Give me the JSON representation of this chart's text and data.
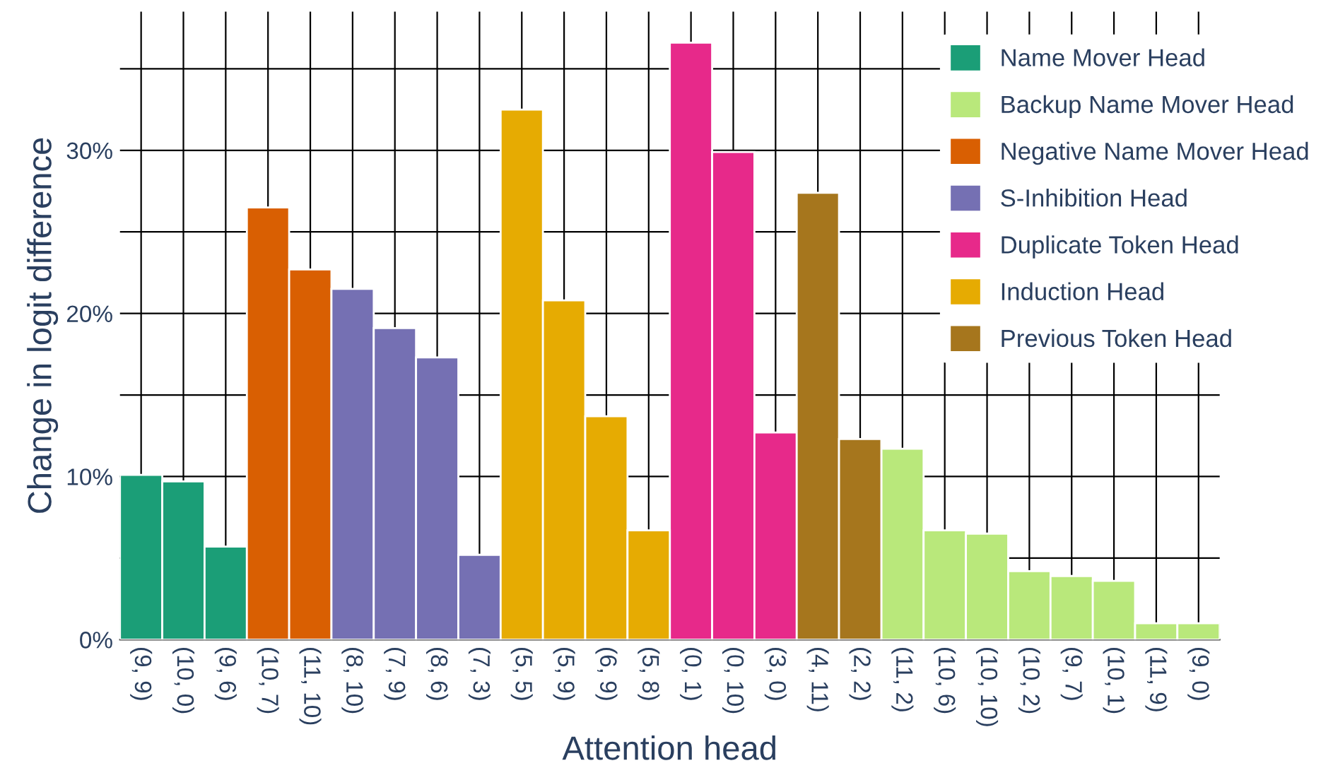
{
  "chart_data": {
    "type": "bar",
    "xlabel": "Attention head",
    "ylabel": "Change in logit difference",
    "categories": [
      "(9, 9)",
      "(10, 0)",
      "(9, 6)",
      "(10, 7)",
      "(11, 10)",
      "(8, 10)",
      "(7, 9)",
      "(8, 6)",
      "(7, 3)",
      "(5, 5)",
      "(5, 9)",
      "(6, 9)",
      "(5, 8)",
      "(0, 1)",
      "(0, 10)",
      "(3, 0)",
      "(4, 11)",
      "(2, 2)",
      "(11, 2)",
      "(10, 6)",
      "(10, 10)",
      "(10, 2)",
      "(9, 7)",
      "(10, 1)",
      "(11, 9)",
      "(9, 0)"
    ],
    "series": [
      {
        "name": "Name Mover Head",
        "color": "#1b9e77",
        "values": [
          10.1,
          9.7,
          5.7,
          null,
          null,
          null,
          null,
          null,
          null,
          null,
          null,
          null,
          null,
          null,
          null,
          null,
          null,
          null,
          null,
          null,
          null,
          null,
          null,
          null,
          null,
          null
        ]
      },
      {
        "name": "Backup Name Mover Head",
        "color": "#b9e87b",
        "values": [
          null,
          null,
          null,
          null,
          null,
          null,
          null,
          null,
          null,
          null,
          null,
          null,
          null,
          null,
          null,
          null,
          null,
          null,
          11.7,
          6.7,
          6.5,
          4.2,
          3.9,
          3.6,
          1.0,
          1.0
        ]
      },
      {
        "name": "Negative Name Mover Head",
        "color": "#d95f02",
        "values": [
          null,
          null,
          null,
          26.5,
          22.7,
          null,
          null,
          null,
          null,
          null,
          null,
          null,
          null,
          null,
          null,
          null,
          null,
          null,
          null,
          null,
          null,
          null,
          null,
          null,
          null,
          null
        ]
      },
      {
        "name": "S-Inhibition Head",
        "color": "#7570b3",
        "values": [
          null,
          null,
          null,
          null,
          null,
          21.5,
          19.1,
          17.3,
          5.2,
          null,
          null,
          null,
          null,
          null,
          null,
          null,
          null,
          null,
          null,
          null,
          null,
          null,
          null,
          null,
          null,
          null
        ]
      },
      {
        "name": "Duplicate Token Head",
        "color": "#e7298a",
        "values": [
          null,
          null,
          null,
          null,
          null,
          null,
          null,
          null,
          null,
          null,
          null,
          null,
          null,
          36.6,
          29.9,
          12.7,
          null,
          null,
          null,
          null,
          null,
          null,
          null,
          null,
          null,
          null
        ]
      },
      {
        "name": "Induction Head",
        "color": "#e6ab02",
        "values": [
          null,
          null,
          null,
          null,
          null,
          null,
          null,
          null,
          null,
          32.5,
          20.8,
          13.7,
          6.7,
          null,
          null,
          null,
          null,
          null,
          null,
          null,
          null,
          null,
          null,
          null,
          null,
          null
        ]
      },
      {
        "name": "Previous Token Head",
        "color": "#a6761d",
        "values": [
          null,
          null,
          null,
          null,
          null,
          null,
          null,
          null,
          null,
          null,
          null,
          null,
          null,
          null,
          null,
          null,
          27.4,
          12.3,
          null,
          null,
          null,
          null,
          null,
          null,
          null,
          null
        ]
      }
    ],
    "ylim": [
      0,
      38.5
    ],
    "yticks": [
      {
        "value": 0,
        "label": "0%"
      },
      {
        "value": 5,
        "label": null
      },
      {
        "value": 10,
        "label": "10%"
      },
      {
        "value": 15,
        "label": null
      },
      {
        "value": 20,
        "label": "20%"
      },
      {
        "value": 25,
        "label": null
      },
      {
        "value": 30,
        "label": "30%"
      },
      {
        "value": 35,
        "label": null
      }
    ],
    "grid": true,
    "legend": "top right"
  }
}
